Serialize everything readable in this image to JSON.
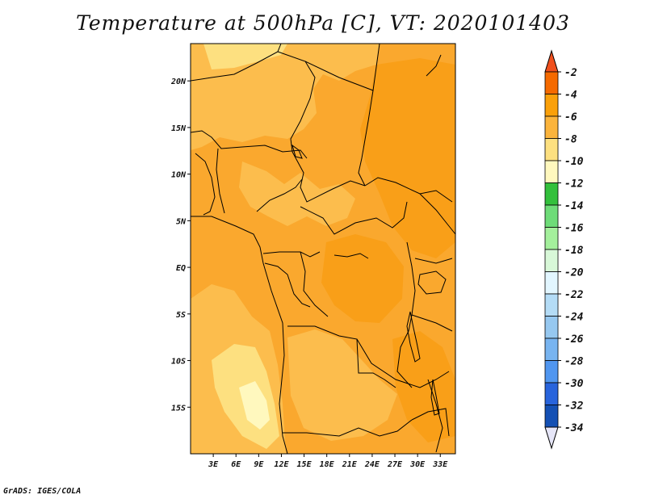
{
  "title": "Temperature at 500hPa [C], VT: 2020101403",
  "credit": "GrADS: IGES/COLA",
  "map": {
    "lon_range": [
      0,
      35
    ],
    "lat_range": [
      -20,
      24
    ],
    "lat_ticks": [
      {
        "lat": 20,
        "label": "20N"
      },
      {
        "lat": 15,
        "label": "15N"
      },
      {
        "lat": 10,
        "label": "10N"
      },
      {
        "lat": 5,
        "label": "5N"
      },
      {
        "lat": 0,
        "label": "EQ"
      },
      {
        "lat": -5,
        "label": "5S"
      },
      {
        "lat": -10,
        "label": "10S"
      },
      {
        "lat": -15,
        "label": "15S"
      }
    ],
    "lon_ticks": [
      {
        "lon": 3,
        "label": "3E"
      },
      {
        "lon": 6,
        "label": "6E"
      },
      {
        "lon": 9,
        "label": "9E"
      },
      {
        "lon": 12,
        "label": "12E"
      },
      {
        "lon": 15,
        "label": "15E"
      },
      {
        "lon": 18,
        "label": "18E"
      },
      {
        "lon": 21,
        "label": "21E"
      },
      {
        "lon": 24,
        "label": "24E"
      },
      {
        "lon": 27,
        "label": "27E"
      },
      {
        "lon": 30,
        "label": "30E"
      },
      {
        "lon": 33,
        "label": "33E"
      }
    ]
  },
  "colorbar": {
    "levels": [
      "-2",
      "-4",
      "-6",
      "-8",
      "-10",
      "-12",
      "-14",
      "-16",
      "-18",
      "-20",
      "-22",
      "-24",
      "-26",
      "-28",
      "-30",
      "-32",
      "-34"
    ],
    "top_color": "#f0501e",
    "bottom_color": "#e6e6f8",
    "bin_colors": [
      "#f56a00",
      "#faa00a",
      "#fbb43c",
      "#fde080",
      "#fff8be",
      "#33c03c",
      "#6edc78",
      "#a4f09c",
      "#d8f8d8",
      "#e2f6ff",
      "#b4dcf6",
      "#96c8f0",
      "#78b4f0",
      "#5096f0",
      "#2864dc",
      "#1450b4"
    ]
  },
  "field_colors": {
    "base": "#faa82e",
    "light": "#fcbd4d",
    "pale": "#fde080",
    "palest": "#fff8be",
    "dark": "#f99f18"
  }
}
